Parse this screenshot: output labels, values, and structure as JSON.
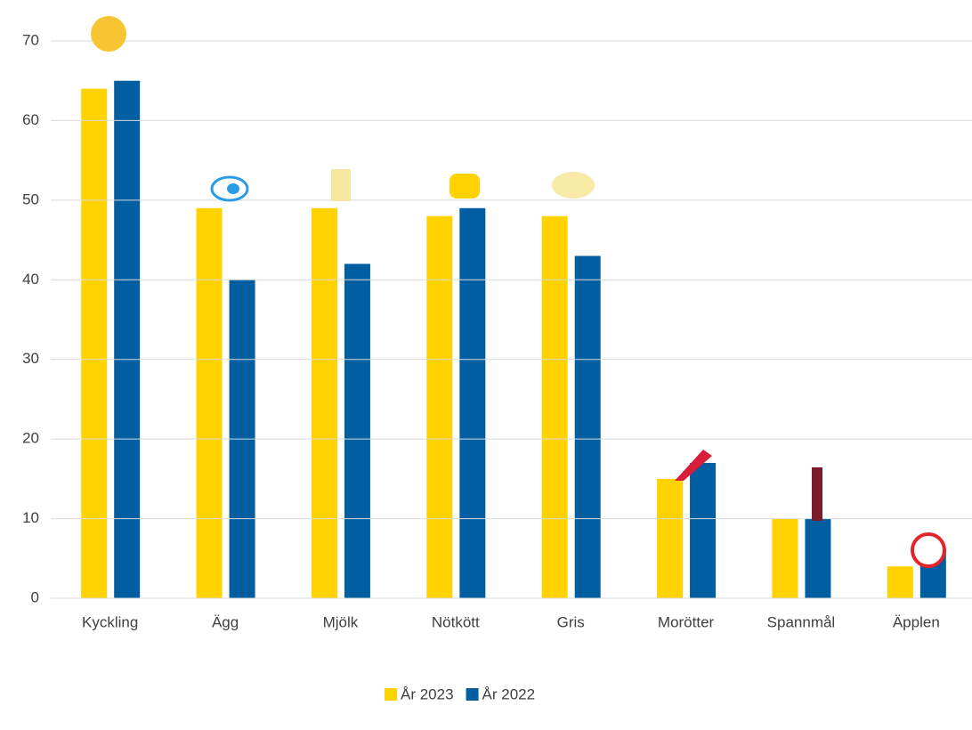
{
  "chart_data": {
    "type": "bar",
    "categories": [
      "Kyckling",
      "Ägg",
      "Mjölk",
      "Nötkött",
      "Gris",
      "Morötter",
      "Spannmål",
      "Äpplen"
    ],
    "series": [
      {
        "name": "År 2023",
        "color": "#ffd200",
        "values": [
          64,
          49,
          49,
          48,
          48,
          15,
          10,
          4
        ]
      },
      {
        "name": "År 2022",
        "color": "#005ea1",
        "values": [
          65,
          40,
          42,
          49,
          43,
          17,
          10,
          6
        ]
      }
    ],
    "ylim": [
      0,
      70
    ],
    "yticks": [
      0,
      10,
      20,
      30,
      40,
      50,
      60,
      70
    ],
    "grid": true,
    "legend": "bottom"
  }
}
